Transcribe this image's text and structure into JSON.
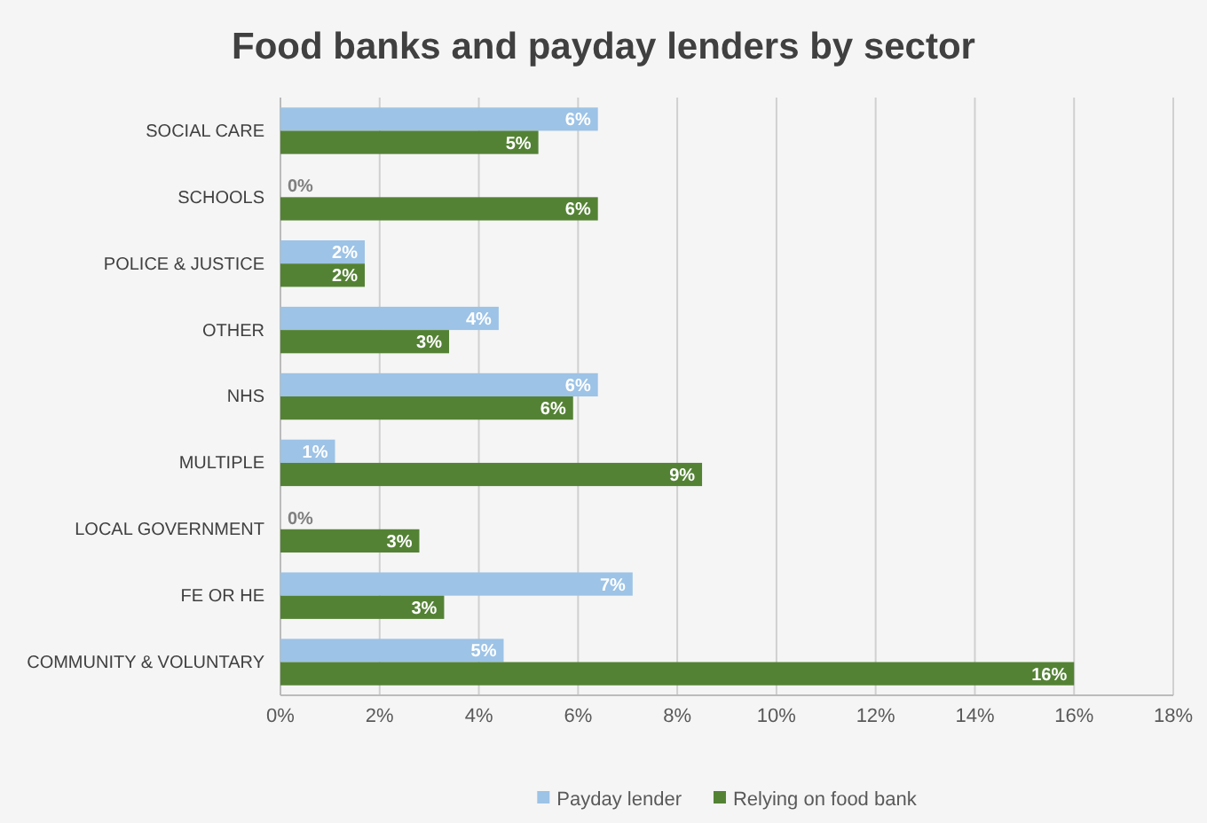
{
  "chart_data": {
    "type": "bar",
    "orientation": "horizontal",
    "title": "Food banks and payday lenders by sector",
    "categories": [
      "SOCIAL CARE",
      "SCHOOLS",
      "POLICE & JUSTICE",
      "OTHER",
      "NHS",
      "MULTIPLE",
      "LOCAL GOVERNMENT",
      "FE OR HE",
      "COMMUNITY & VOLUNTARY"
    ],
    "series": [
      {
        "name": "Payday lender",
        "color": "#9dc3e6",
        "values": [
          6.4,
          0,
          1.7,
          4.4,
          6.4,
          1.1,
          0,
          7.1,
          4.5
        ],
        "value_labels": [
          "6%",
          "0%",
          "2%",
          "4%",
          "6%",
          "1%",
          "0%",
          "7%",
          "5%"
        ]
      },
      {
        "name": "Relying on food bank",
        "color": "#548235",
        "values": [
          5.2,
          6.4,
          1.7,
          3.4,
          5.9,
          8.5,
          2.8,
          3.3,
          16
        ],
        "value_labels": [
          "5%",
          "6%",
          "2%",
          "3%",
          "6%",
          "9%",
          "3%",
          "3%",
          "16%"
        ]
      }
    ],
    "xlim": [
      0,
      18
    ],
    "xticks": [
      {
        "value": 0,
        "label": "0%"
      },
      {
        "value": 2,
        "label": "2%"
      },
      {
        "value": 4,
        "label": "4%"
      },
      {
        "value": 6,
        "label": "6%"
      },
      {
        "value": 8,
        "label": "8%"
      },
      {
        "value": 10,
        "label": "10%"
      },
      {
        "value": 12,
        "label": "12%"
      },
      {
        "value": 14,
        "label": "14%"
      },
      {
        "value": 16,
        "label": "16%"
      },
      {
        "value": 18,
        "label": "18%"
      }
    ],
    "grid": "x",
    "legend": "bottom"
  }
}
